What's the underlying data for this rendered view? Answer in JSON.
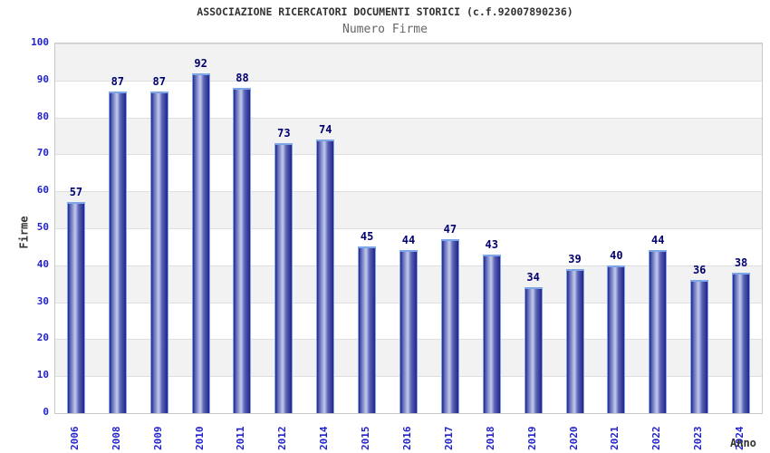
{
  "chart_data": {
    "type": "bar",
    "title": "ASSOCIAZIONE RICERCATORI DOCUMENTI STORICI (c.f.92007890236)",
    "subtitle": "Numero Firme",
    "xlabel": "Anno",
    "ylabel": "Firme",
    "categories": [
      "2006",
      "2008",
      "2009",
      "2010",
      "2011",
      "2012",
      "2014",
      "2015",
      "2016",
      "2017",
      "2018",
      "2019",
      "2020",
      "2021",
      "2022",
      "2023",
      "2024"
    ],
    "values": [
      57,
      87,
      87,
      92,
      88,
      73,
      74,
      45,
      44,
      47,
      43,
      34,
      39,
      40,
      44,
      36,
      38
    ],
    "ylim": [
      0,
      100
    ],
    "ytick_step": 10,
    "grid": true,
    "legend": "none",
    "bar_value_labels": true,
    "x_tick_rotation": -90
  },
  "colors": {
    "title_text": "#333333",
    "subtitle_text": "#666666",
    "axis_tick_text": "#2222cc",
    "value_label_text": "#000070",
    "axis_title_text": "#333333",
    "bar_dark": "#23238b",
    "bar_mid": "#5a64b4",
    "bar_light": "#c4cbee",
    "bar_border": "#7ca6e8",
    "band_gray": "#f2f2f2",
    "band_white": "#ffffff",
    "gridline": "#dedede",
    "plot_border": "#c8c8c8"
  }
}
